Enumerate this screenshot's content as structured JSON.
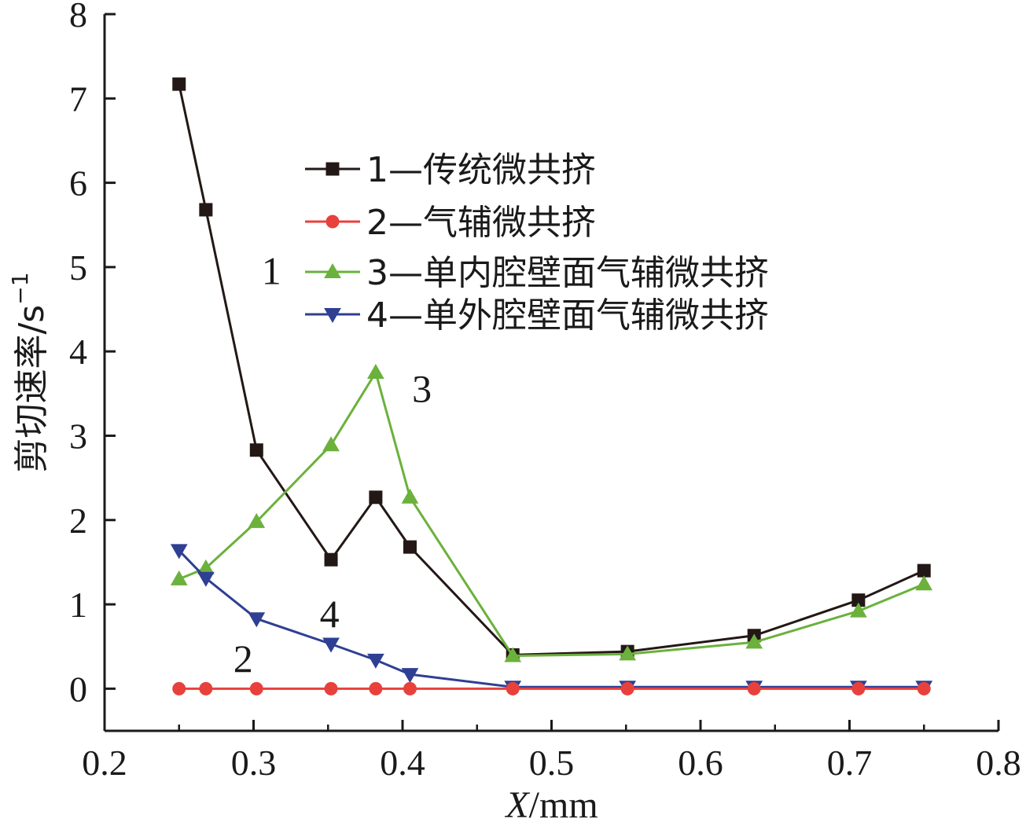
{
  "chart_data": {
    "type": "line",
    "title": "",
    "xlabel": "X/mm",
    "xlabel_var": "X",
    "xlabel_unit": "/mm",
    "ylabel": "剪切速率/s⁻¹",
    "ylabel_text": "剪切速率/s",
    "ylabel_sup": "−1",
    "xlim": [
      0.2,
      0.8
    ],
    "ylim": [
      -0.5,
      8
    ],
    "xticks": [
      0.2,
      0.3,
      0.4,
      0.5,
      0.6,
      0.7,
      0.8
    ],
    "xtick_labels": [
      "0.2",
      "0.3",
      "0.4",
      "0.5",
      "0.6",
      "0.7",
      "0.8"
    ],
    "yticks": [
      0,
      1,
      2,
      3,
      4,
      5,
      6,
      7,
      8
    ],
    "ytick_labels": [
      "0",
      "1",
      "2",
      "3",
      "4",
      "5",
      "6",
      "7",
      "8"
    ],
    "grid": false,
    "legend_position": "top-right",
    "series": [
      {
        "name": "1—传统微共挤",
        "color": "#231815",
        "marker": "square",
        "x": [
          0.25,
          0.268,
          0.302,
          0.352,
          0.382,
          0.405,
          0.474,
          0.551,
          0.636,
          0.706,
          0.75
        ],
        "y": [
          7.17,
          5.68,
          2.83,
          1.53,
          2.27,
          1.68,
          0.4,
          0.44,
          0.63,
          1.05,
          1.4
        ]
      },
      {
        "name": "2—气辅微共挤",
        "color": "#e8413c",
        "marker": "circle",
        "x": [
          0.25,
          0.268,
          0.302,
          0.352,
          0.382,
          0.405,
          0.474,
          0.551,
          0.636,
          0.706,
          0.75
        ],
        "y": [
          0,
          0,
          0,
          0,
          0,
          0,
          0,
          0,
          0,
          0,
          0
        ]
      },
      {
        "name": "3—单内腔壁面气辅微共挤",
        "color": "#6bb13c",
        "marker": "triangle-up",
        "x": [
          0.25,
          0.268,
          0.302,
          0.352,
          0.382,
          0.405,
          0.474,
          0.551,
          0.636,
          0.706,
          0.75
        ],
        "y": [
          1.3,
          1.43,
          1.98,
          2.89,
          3.75,
          2.27,
          0.39,
          0.41,
          0.55,
          0.92,
          1.24
        ]
      },
      {
        "name": "4—单外腔壁面气辅微共挤",
        "color": "#2f3f93",
        "marker": "triangle-down",
        "x": [
          0.25,
          0.268,
          0.302,
          0.352,
          0.382,
          0.405,
          0.474,
          0.551,
          0.636,
          0.706,
          0.75
        ],
        "y": [
          1.64,
          1.31,
          0.83,
          0.53,
          0.34,
          0.17,
          0.02,
          0.02,
          0.02,
          0.02,
          0.02
        ]
      }
    ],
    "annotations": [
      {
        "text": "1",
        "x": 0.312,
        "y": 4.8
      },
      {
        "text": "3",
        "x": 0.413,
        "y": 3.4
      },
      {
        "text": "4",
        "x": 0.351,
        "y": 0.73
      },
      {
        "text": "2",
        "x": 0.293,
        "y": 0.2
      }
    ]
  }
}
